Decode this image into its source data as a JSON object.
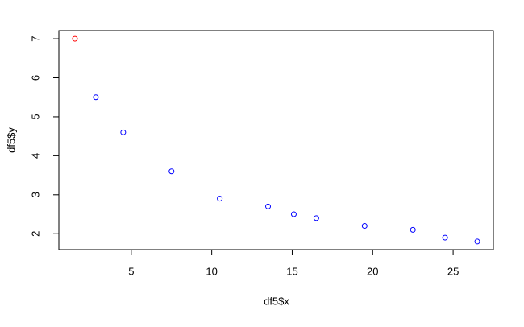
{
  "chart_data": {
    "type": "scatter",
    "x_label": "df5$x",
    "y_label": "df5$y",
    "x": [
      1.5,
      2.8,
      4.5,
      7.5,
      10.5,
      13.5,
      15.1,
      16.5,
      19.5,
      22.5,
      24.5,
      26.5
    ],
    "values": [
      7,
      5.5,
      4.6,
      3.6,
      2.9,
      2.7,
      2.5,
      2.4,
      2.2,
      2.1,
      1.9,
      1.8
    ],
    "colors": [
      "#ff0000",
      "#0000ff",
      "#0000ff",
      "#0000ff",
      "#0000ff",
      "#0000ff",
      "#0000ff",
      "#0000ff",
      "#0000ff",
      "#0000ff",
      "#0000ff",
      "#0000ff"
    ],
    "xlim": [
      0.5,
      27.5
    ],
    "ylim": [
      1.592,
      7.208
    ],
    "xticks": [
      5,
      10,
      15,
      20,
      25
    ],
    "yticks": [
      2,
      3,
      4,
      5,
      6,
      7
    ]
  }
}
